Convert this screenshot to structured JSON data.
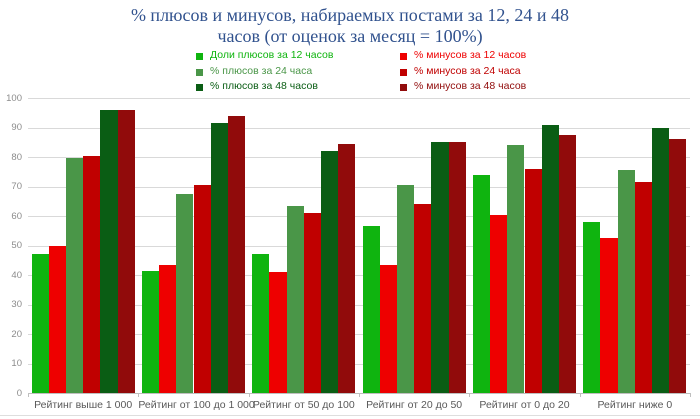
{
  "title": {
    "line1": "% плюсов и минусов, набираемых постами за 12, 24 и 48",
    "line2": "часов (от оценок за месяц = 100%)",
    "color": "#31528E"
  },
  "chart_data": {
    "type": "bar",
    "title": "% плюсов и минусов, набираемых постами за 12, 24 и 48 часов (от оценок за месяц = 100%)",
    "categories": [
      "Рейтинг выше 1 000",
      "Рейтинг от 100 до 1 000",
      "Рейтинг от 50 до 100",
      "Рейтинг от 20 до 50",
      "Рейтинг от 0 до 20",
      "Рейтинг ниже 0"
    ],
    "series": [
      {
        "name": "Доли плюсов за 12 часов",
        "color": "#0FB40F",
        "values": [
          47,
          41.5,
          47,
          56.5,
          74,
          58
        ]
      },
      {
        "name": "% минусов за 12 часов",
        "color": "#EE0000",
        "values": [
          50,
          43.5,
          41,
          43.5,
          60.5,
          52.5
        ]
      },
      {
        "name": "% плюсов за 24 часа",
        "color": "#4A9648",
        "values": [
          79.5,
          67.5,
          63.5,
          70.5,
          84,
          75.5
        ]
      },
      {
        "name": "% минусов за 24 часа",
        "color": "#C00000",
        "values": [
          80.5,
          70.5,
          61,
          64,
          76,
          71.5
        ]
      },
      {
        "name": "% плюсов за 48 часов",
        "color": "#0A5D14",
        "values": [
          96,
          91.5,
          82,
          85,
          91,
          90
        ]
      },
      {
        "name": "% минусов за 48 часов",
        "color": "#910B0B",
        "values": [
          96,
          94,
          84.5,
          85,
          87.5,
          86
        ]
      }
    ],
    "ylim": [
      0,
      100
    ],
    "ytick_step": 10,
    "yticks": [
      0,
      10,
      20,
      30,
      40,
      50,
      60,
      70,
      80,
      90,
      100
    ],
    "grid": true,
    "legend_position": "top",
    "legend_columns": {
      "left_series_indices": [
        0,
        2,
        4
      ],
      "right_series_indices": [
        1,
        3,
        5
      ]
    }
  }
}
